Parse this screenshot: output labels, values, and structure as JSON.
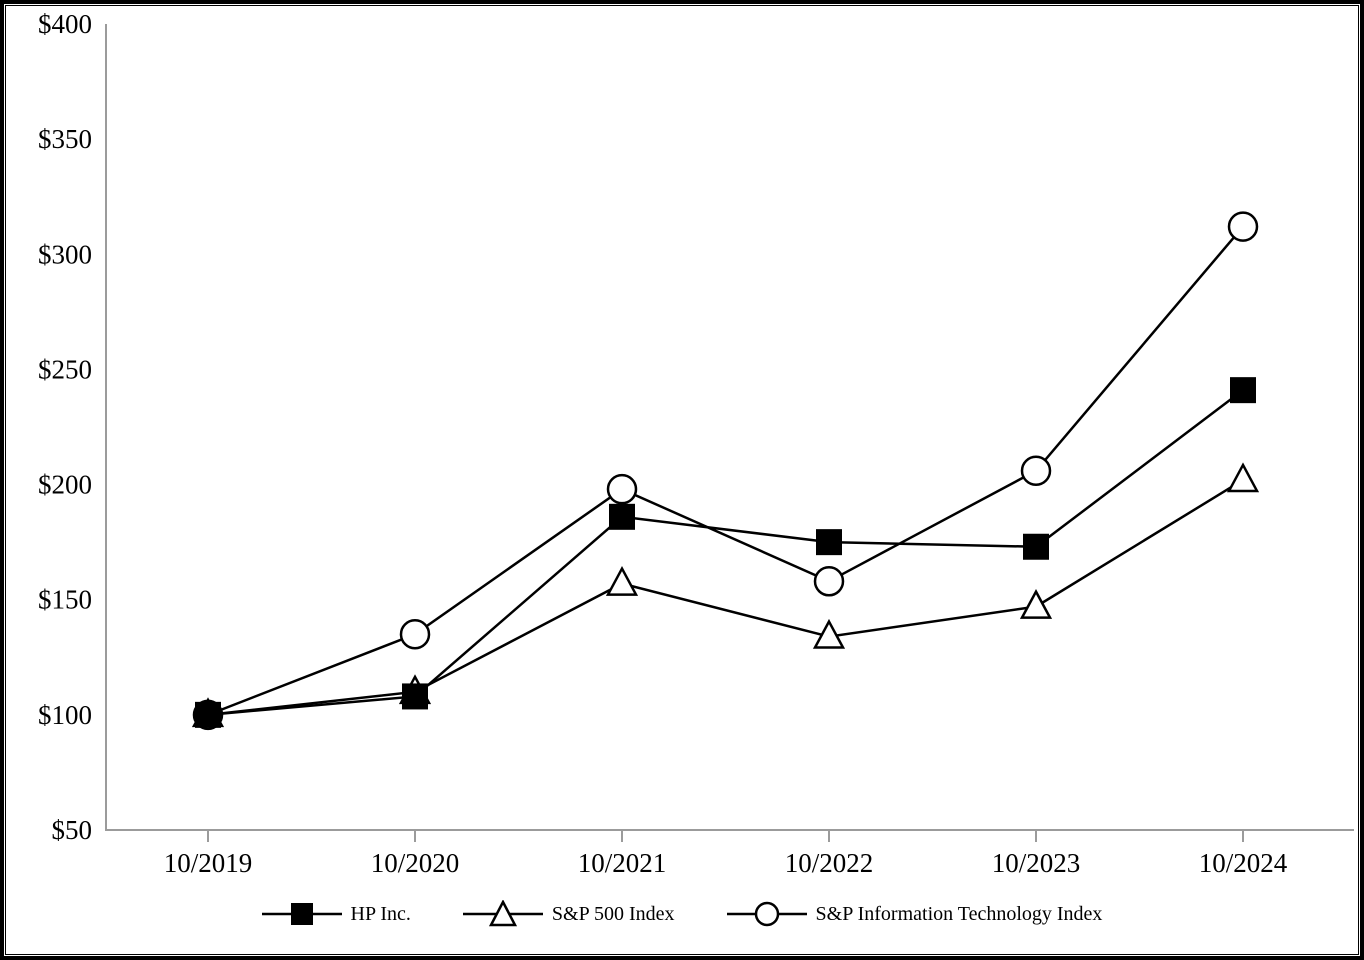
{
  "chart_data": {
    "type": "line",
    "title": "",
    "xlabel": "",
    "ylabel": "",
    "categories": [
      "10/2019",
      "10/2020",
      "10/2021",
      "10/2022",
      "10/2023",
      "10/2024"
    ],
    "series": [
      {
        "name": "HP Inc.",
        "marker": "filled-square",
        "values": [
          100,
          108,
          186,
          175,
          173,
          241
        ]
      },
      {
        "name": "S&P 500 Index",
        "marker": "open-triangle",
        "values": [
          100,
          110,
          157,
          134,
          147,
          202
        ]
      },
      {
        "name": "S&P Information Technology Index",
        "marker": "open-circle",
        "values": [
          100,
          135,
          198,
          158,
          206,
          312
        ]
      }
    ],
    "y_axis": {
      "min": 50,
      "max": 400,
      "step": 50,
      "tick_labels": [
        "$50",
        "$100",
        "$150",
        "$200",
        "$250",
        "$300",
        "$350",
        "$400"
      ]
    },
    "x_axis": {
      "tick_labels": [
        "10/2019",
        "10/2020",
        "10/2021",
        "10/2022",
        "10/2023",
        "10/2024"
      ]
    },
    "grid": false,
    "legend_position": "bottom",
    "colors": {
      "series": "#000000",
      "axis": "#9b9b9b",
      "background": "#ffffff",
      "frame": "#000000"
    }
  }
}
